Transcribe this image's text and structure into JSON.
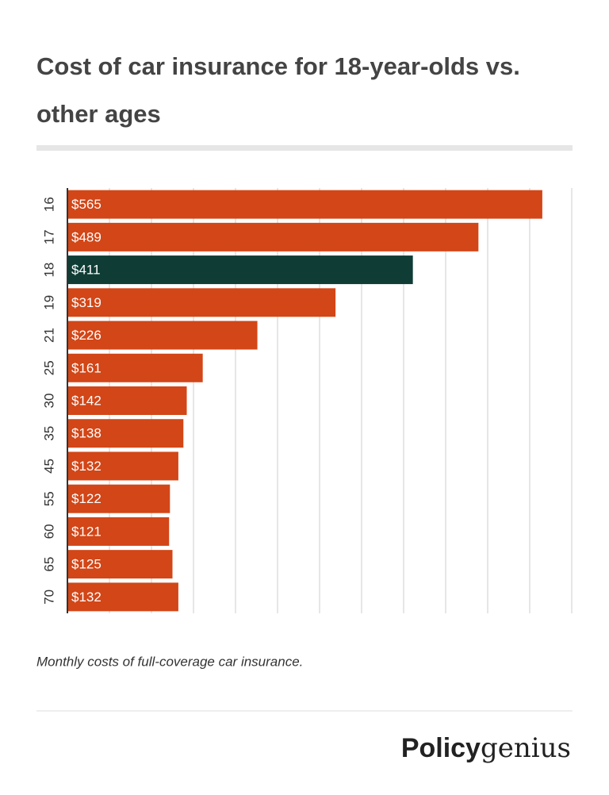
{
  "chart_data": {
    "type": "hbar",
    "title_lines": [
      "Cost of car insurance for 18-year-olds vs.",
      "other ages"
    ],
    "categories": [
      "16",
      "17",
      "18",
      "19",
      "21",
      "25",
      "30",
      "35",
      "45",
      "55",
      "60",
      "65",
      "70"
    ],
    "values": [
      565,
      489,
      411,
      319,
      226,
      161,
      142,
      138,
      132,
      122,
      121,
      125,
      132
    ],
    "value_labels": [
      "$565",
      "$489",
      "$411",
      "$319",
      "$226",
      "$161",
      "$142",
      "$138",
      "$132",
      "$122",
      "$121",
      "$125",
      "$132"
    ],
    "colors": [
      "#d24617",
      "#d24617",
      "#0f3d36",
      "#d24617",
      "#d24617",
      "#d24617",
      "#d24617",
      "#d24617",
      "#d24617",
      "#d24617",
      "#d24617",
      "#d24617",
      "#d24617"
    ],
    "xlim": [
      0,
      600
    ],
    "xticks": [
      0,
      50,
      100,
      150,
      200,
      250,
      300,
      350,
      400,
      450,
      500,
      550,
      600
    ],
    "grid": true,
    "note": "Monthly costs of full-coverage car insurance.",
    "logo": {
      "bold": "Policy",
      "light": "genius"
    }
  }
}
